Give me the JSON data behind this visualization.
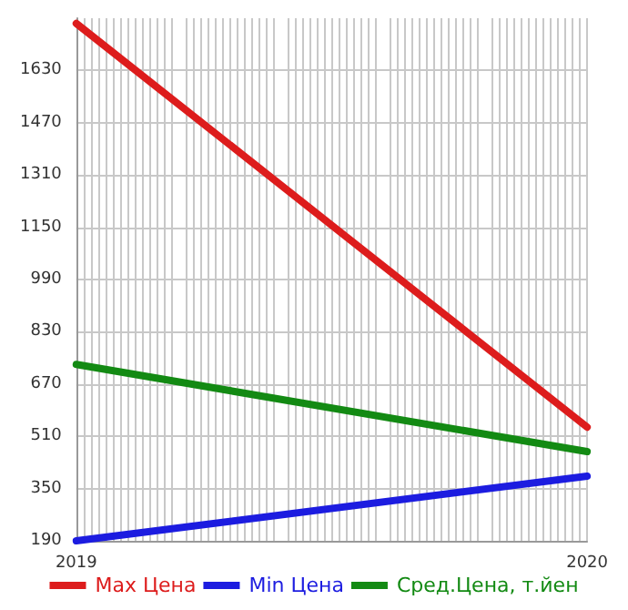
{
  "chart_data": {
    "type": "line",
    "x": [
      2019,
      2020
    ],
    "xlim": [
      2019,
      2020
    ],
    "xticks": [
      2019,
      2020
    ],
    "ylim": [
      190,
      1790
    ],
    "yticks": [
      190,
      350,
      510,
      670,
      830,
      990,
      1150,
      1310,
      1470,
      1630
    ],
    "grid": true,
    "legend": "bottom",
    "marker": "none",
    "line_style": "solid",
    "series": [
      {
        "name": "Max Цена",
        "color": "#dd1c1c",
        "values": [
          1774,
          538
        ]
      },
      {
        "name": "Min Цена",
        "color": "#1c1ce0",
        "values": [
          190,
          388
        ]
      },
      {
        "name": "Сред.Цена, т.йен",
        "color": "#138a13",
        "values": [
          730,
          463
        ]
      }
    ]
  }
}
